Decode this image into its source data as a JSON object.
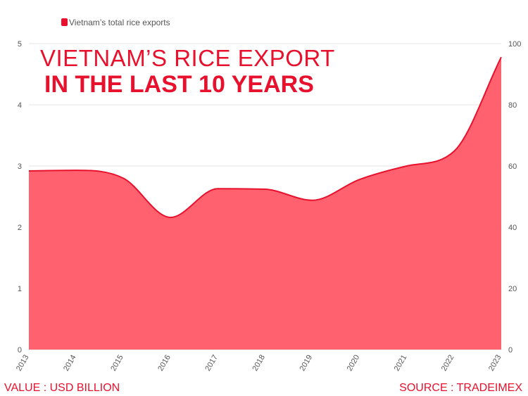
{
  "colors": {
    "accent": "#e8112d",
    "area_fill": "#ff5a66",
    "grid": "#e6e6e6",
    "axis_text": "#555555"
  },
  "footer": {
    "left": "VALUE : USD BILLION",
    "right": "SOURCE : TRADEIMEX"
  },
  "chart_data": {
    "type": "area",
    "title_line1": "VIETNAM’S RICE EXPORT",
    "title_line2": "IN THE LAST 10 YEARS",
    "legend": [
      {
        "label": "Vietnam’s total rice exports",
        "color": "#e8112d"
      }
    ],
    "legend_position": "top-left",
    "x": [
      "2013",
      "2014",
      "2015",
      "2016",
      "2017",
      "2018",
      "2019",
      "2020",
      "2021",
      "2022",
      "2023"
    ],
    "series": [
      {
        "name": "Vietnam’s total rice exports",
        "values": [
          2.92,
          2.93,
          2.8,
          2.16,
          2.63,
          2.62,
          2.44,
          2.78,
          3.0,
          3.24,
          4.78
        ]
      }
    ],
    "ylim": [
      0,
      5
    ],
    "yticks": [
      "0",
      "1",
      "2",
      "3",
      "4",
      "5"
    ],
    "y2lim": [
      0,
      100
    ],
    "y2ticks": [
      "0",
      "20",
      "40",
      "60",
      "80",
      "100"
    ],
    "grid": true
  }
}
